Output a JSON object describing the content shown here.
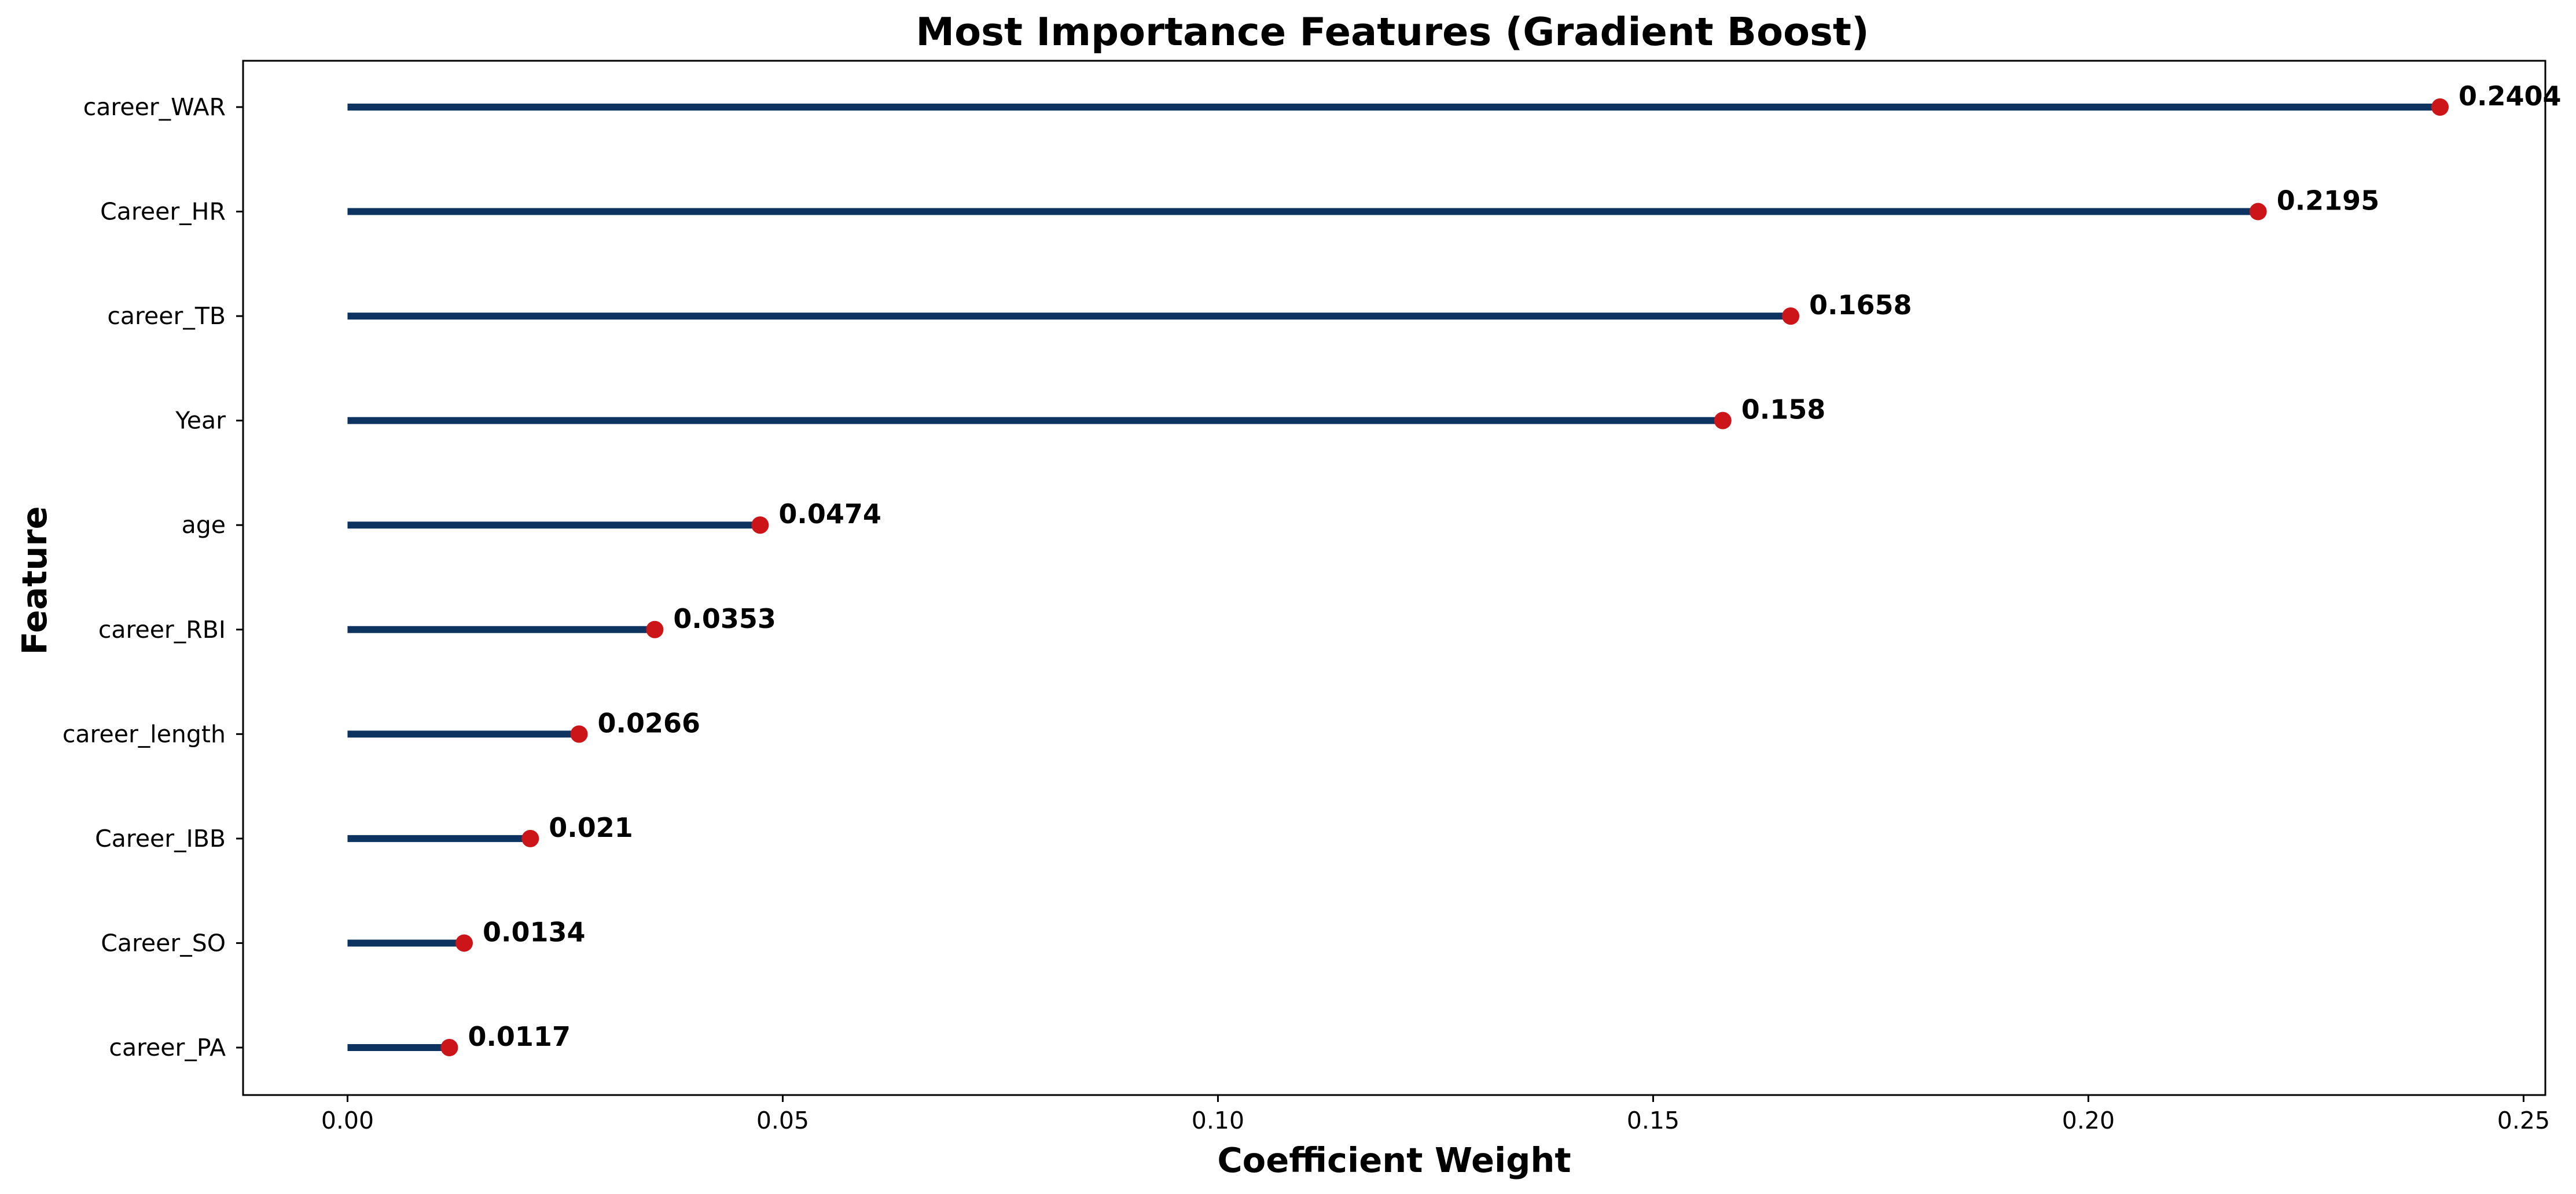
{
  "chart_data": {
    "type": "lollipop",
    "orientation": "horizontal",
    "title": "Most Importance Features (Gradient Boost)",
    "xlabel": "Coefficient Weight",
    "ylabel": "Feature",
    "categories": [
      "career_WAR",
      "Career_HR",
      "career_TB",
      "Year",
      "age",
      "career_RBI",
      "career_length",
      "Career_IBB",
      "Career_SO",
      "career_PA"
    ],
    "values": [
      0.2404,
      0.2195,
      0.1658,
      0.158,
      0.0474,
      0.0353,
      0.0266,
      0.021,
      0.0134,
      0.0117
    ],
    "value_labels": [
      "0.2404",
      "0.2195",
      "0.1658",
      "0.158",
      "0.0474",
      "0.0353",
      "0.0266",
      "0.021",
      "0.0134",
      "0.0117"
    ],
    "xlim": [
      -0.012,
      0.2525
    ],
    "xticks": [
      0.0,
      0.05,
      0.1,
      0.15,
      0.2,
      0.25
    ],
    "xtick_labels": [
      "0.00",
      "0.05",
      "0.10",
      "0.15",
      "0.20",
      "0.25"
    ],
    "grid": false,
    "legend": "none",
    "colors": {
      "stem": "#0d3461",
      "marker": "#cc1518",
      "axes": "#000000",
      "background": "#ffffff"
    }
  }
}
